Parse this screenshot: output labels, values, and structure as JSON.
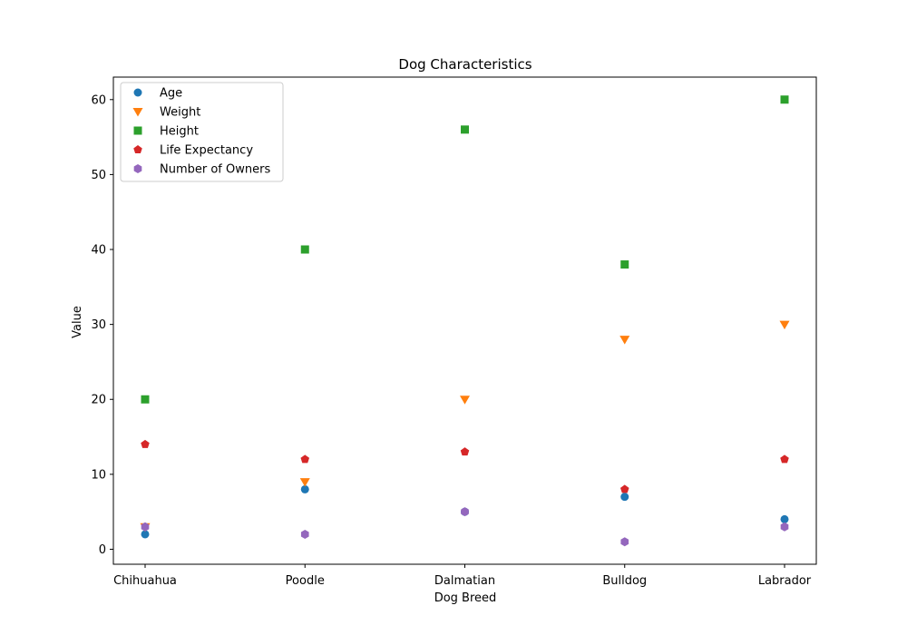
{
  "chart_data": {
    "type": "scatter",
    "title": "Dog Characteristics",
    "xlabel": "Dog Breed",
    "ylabel": "Value",
    "categories": [
      "Chihuahua",
      "Poodle",
      "Dalmatian",
      "Bulldog",
      "Labrador"
    ],
    "ylim": [
      -2,
      63
    ],
    "yticks": [
      0,
      10,
      20,
      30,
      40,
      50,
      60
    ],
    "grid": false,
    "legend_position": "top-left",
    "series": [
      {
        "name": "Age",
        "color": "#1f77b4",
        "marker": "circle",
        "values": [
          2,
          8,
          5,
          7,
          4
        ]
      },
      {
        "name": "Weight",
        "color": "#ff7f0e",
        "marker": "triangle-down",
        "values": [
          3,
          9,
          20,
          28,
          30
        ]
      },
      {
        "name": "Height",
        "color": "#2ca02c",
        "marker": "square",
        "values": [
          20,
          40,
          56,
          38,
          60
        ]
      },
      {
        "name": "Life Expectancy",
        "color": "#d62728",
        "marker": "pentagon",
        "values": [
          14,
          12,
          13,
          8,
          12
        ]
      },
      {
        "name": "Number of Owners",
        "color": "#9467bd",
        "marker": "hexagon",
        "values": [
          3,
          2,
          5,
          1,
          3
        ]
      }
    ]
  }
}
